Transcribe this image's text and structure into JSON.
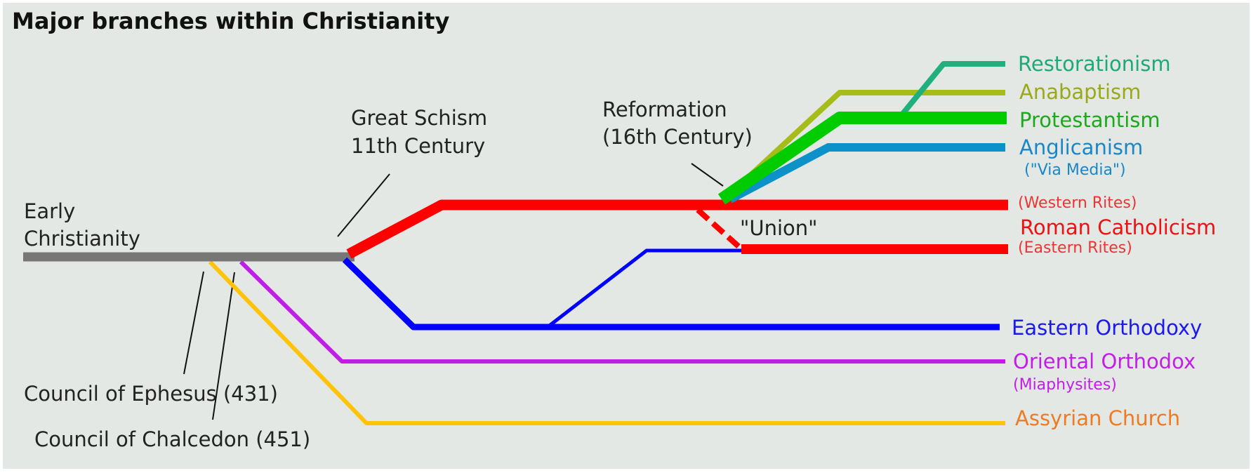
{
  "title": "Major branches within Christianity",
  "annotations": {
    "early_line1": "Early",
    "early_line2": "Christianity",
    "schism_line1": "Great Schism",
    "schism_line2": "11th Century",
    "reformation_line1": "Reformation",
    "reformation_line2": "(16th Century)",
    "union": "\"Union\"",
    "ephesus": "Council of Ephesus (431)",
    "chalcedon": "Council of Chalcedon (451)"
  },
  "branches": {
    "restorationism": {
      "label": "Restorationism",
      "color": "#1fa87a"
    },
    "anabaptism": {
      "label": "Anabaptism",
      "color": "#9aa81a"
    },
    "protestantism": {
      "label": "Protestantism",
      "color": "#1ea81e"
    },
    "anglicanism": {
      "label": "Anglicanism",
      "sub": "(\"Via Media\")",
      "color": "#1a86c8"
    },
    "roman_catholicism": {
      "label": "Roman Catholicism",
      "western": "(Western Rites)",
      "eastern": "(Eastern Rites)",
      "color": "#ee1111"
    },
    "eastern_orthodoxy": {
      "label": "Eastern Orthodoxy",
      "color": "#1a1aee"
    },
    "oriental_orthodox": {
      "label": "Oriental Orthodox",
      "sub": "(Miaphysites)",
      "color": "#c21ee8"
    },
    "assyrian_church": {
      "label": "Assyrian Church",
      "color": "#f07a22"
    }
  },
  "line_colors": {
    "early": "#777777",
    "catholic": "#ff0000",
    "orthodox": "#0000ff",
    "oriental": "#c01ee8",
    "assyrian": "#ffc30a",
    "restorationism": "#20b080",
    "anabaptism": "#a6bc18",
    "protestantism": "#00cc00",
    "anglicanism": "#0c92c8"
  }
}
